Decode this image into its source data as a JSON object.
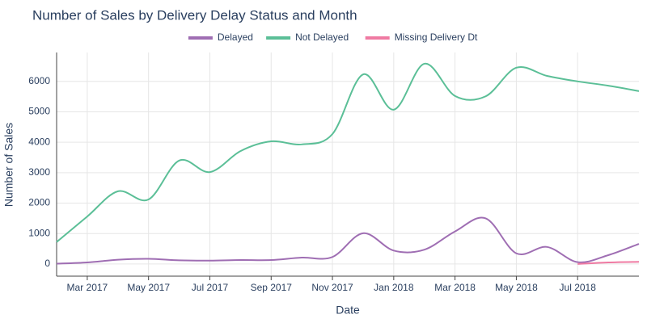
{
  "chart_data": {
    "type": "line",
    "title": "Number of Sales by Delivery Delay Status and Month",
    "x_label": "Date",
    "y_label": "Number of Sales",
    "x": [
      "2017-02",
      "2017-03",
      "2017-04",
      "2017-05",
      "2017-06",
      "2017-07",
      "2017-08",
      "2017-09",
      "2017-10",
      "2017-11",
      "2017-12",
      "2018-01",
      "2018-02",
      "2018-03",
      "2018-04",
      "2018-05",
      "2018-06",
      "2018-07",
      "2018-08",
      "2018-09"
    ],
    "series": [
      {
        "name": "Delayed",
        "color": "#9f6eb3",
        "values": [
          10,
          50,
          140,
          170,
          120,
          110,
          130,
          130,
          210,
          230,
          1010,
          440,
          470,
          1070,
          1500,
          350,
          560,
          60,
          290,
          660
        ]
      },
      {
        "name": "Not Delayed",
        "color": "#5bbf97",
        "values": [
          720,
          1560,
          2390,
          2120,
          3400,
          3020,
          3710,
          4030,
          3930,
          4270,
          6230,
          5070,
          6580,
          5520,
          5510,
          6450,
          6180,
          6000,
          5860,
          5680
        ]
      },
      {
        "name": "Missing Delivery Dt",
        "color": "#ef7aa2",
        "values": [
          null,
          null,
          null,
          null,
          null,
          null,
          null,
          null,
          null,
          null,
          null,
          null,
          null,
          null,
          null,
          null,
          null,
          0,
          50,
          70
        ]
      }
    ],
    "xlim": [
      "2017-02",
      "2018-09"
    ],
    "xticks": [
      {
        "value": "2017-03",
        "label": "Mar 2017"
      },
      {
        "value": "2017-05",
        "label": "May 2017"
      },
      {
        "value": "2017-07",
        "label": "Jul 2017"
      },
      {
        "value": "2017-09",
        "label": "Sep 2017"
      },
      {
        "value": "2017-11",
        "label": "Nov 2017"
      },
      {
        "value": "2018-01",
        "label": "Jan 2018"
      },
      {
        "value": "2018-03",
        "label": "Mar 2018"
      },
      {
        "value": "2018-05",
        "label": "May 2018"
      },
      {
        "value": "2018-07",
        "label": "Jul 2018"
      }
    ],
    "ylim": [
      -400,
      6950
    ],
    "yticks": [
      0,
      1000,
      2000,
      3000,
      4000,
      5000,
      6000
    ],
    "grid": true,
    "legend": "top"
  }
}
